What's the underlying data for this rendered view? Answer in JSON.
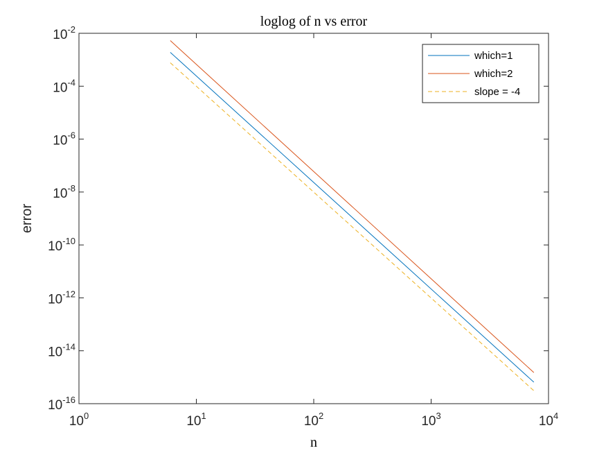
{
  "chart_data": {
    "type": "line",
    "title": "loglog of n vs error",
    "xlabel": "n",
    "ylabel": "error",
    "xscale": "log",
    "yscale": "log",
    "xlim": [
      1,
      10000
    ],
    "ylim": [
      1e-16,
      0.01
    ],
    "grid": false,
    "legend_position": "top-right",
    "x_ticks": [
      {
        "value": 1,
        "base": "10",
        "exp": "0"
      },
      {
        "value": 10,
        "base": "10",
        "exp": "1"
      },
      {
        "value": 100,
        "base": "10",
        "exp": "2"
      },
      {
        "value": 1000,
        "base": "10",
        "exp": "3"
      },
      {
        "value": 10000,
        "base": "10",
        "exp": "4"
      }
    ],
    "y_ticks": [
      {
        "value": 1e-16,
        "base": "10",
        "exp": "-16"
      },
      {
        "value": 1e-14,
        "base": "10",
        "exp": "-14"
      },
      {
        "value": 1e-12,
        "base": "10",
        "exp": "-12"
      },
      {
        "value": 1e-10,
        "base": "10",
        "exp": "-10"
      },
      {
        "value": 1e-08,
        "base": "10",
        "exp": "-8"
      },
      {
        "value": 1e-06,
        "base": "10",
        "exp": "-6"
      },
      {
        "value": 0.0001,
        "base": "10",
        "exp": "-4"
      },
      {
        "value": 0.01,
        "base": "10",
        "exp": "-2"
      }
    ],
    "series": [
      {
        "name": "which=1",
        "color": "#0072BD",
        "style": "solid",
        "x": [
          6,
          7500
        ],
        "y": [
          0.0019,
          6.5e-16
        ]
      },
      {
        "name": "which=2",
        "color": "#D95319",
        "style": "solid",
        "x": [
          6,
          7500
        ],
        "y": [
          0.0053,
          1.5e-15
        ]
      },
      {
        "name": "slope = -4",
        "color": "#EDB120",
        "style": "dashed",
        "x": [
          6,
          7500
        ],
        "y": [
          0.00077,
          3.1e-16
        ]
      }
    ]
  }
}
